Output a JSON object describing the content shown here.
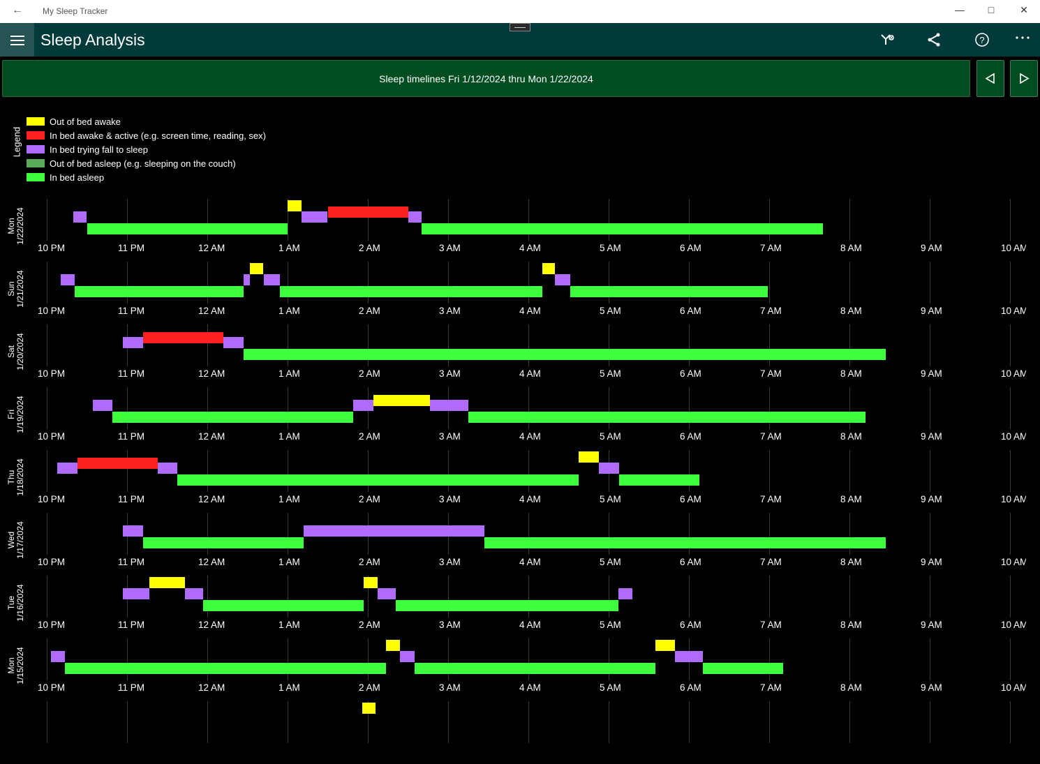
{
  "window": {
    "title": "My Sleep Tracker"
  },
  "appbar": {
    "title": "Sleep Analysis"
  },
  "header": {
    "title": "Sleep timelines Fri 1/12/2024 thru Mon 1/22/2024"
  },
  "legend": {
    "title": "Legend",
    "items": [
      {
        "label": "Out of bed awake",
        "color": "#ffff00"
      },
      {
        "label": "In bed awake & active (e.g. screen time, reading, sex)",
        "color": "#ff2020"
      },
      {
        "label": "In bed trying fall to sleep",
        "color": "#b06cff"
      },
      {
        "label": "Out of bed asleep (e.g. sleeping on the couch)",
        "color": "#5aa85a"
      },
      {
        "label": "In bed asleep",
        "color": "#3dff3d"
      }
    ]
  },
  "colors": {
    "out_of_bed_awake": "#ffff00",
    "in_bed_active": "#ff2020",
    "trying": "#b06cff",
    "out_of_bed_asleep": "#5aa85a",
    "asleep": "#3dff3d"
  },
  "chart_data": {
    "type": "timeline",
    "x_ticks": [
      "10 PM",
      "11 PM",
      "12 AM",
      "1 AM",
      "2 AM",
      "3 AM",
      "4 AM",
      "5 AM",
      "6 AM",
      "7 AM",
      "8 AM",
      "9 AM",
      "10 AM"
    ],
    "x_unit": "hours after 10 PM",
    "days": [
      {
        "day": "Mon",
        "date": "1/22/2024",
        "segments": [
          {
            "state": "trying",
            "start": 0.33,
            "end": 0.5,
            "level": 1
          },
          {
            "state": "asleep",
            "start": 0.5,
            "end": 3.0,
            "level": 2
          },
          {
            "state": "out_of_bed_awake",
            "start": 3.0,
            "end": 3.17,
            "level": 0
          },
          {
            "state": "trying",
            "start": 3.17,
            "end": 3.5,
            "level": 1
          },
          {
            "state": "in_bed_active",
            "start": 3.5,
            "end": 4.5,
            "level": 0.5
          },
          {
            "state": "trying",
            "start": 4.5,
            "end": 4.67,
            "level": 1
          },
          {
            "state": "asleep",
            "start": 4.67,
            "end": 9.67,
            "level": 2
          }
        ]
      },
      {
        "day": "Sun",
        "date": "1/21/2024",
        "segments": [
          {
            "state": "trying",
            "start": 0.17,
            "end": 0.35,
            "level": 1
          },
          {
            "state": "asleep",
            "start": 0.35,
            "end": 2.45,
            "level": 2
          },
          {
            "state": "trying",
            "start": 2.45,
            "end": 2.53,
            "level": 1
          },
          {
            "state": "out_of_bed_awake",
            "start": 2.53,
            "end": 2.7,
            "level": 0
          },
          {
            "state": "trying",
            "start": 2.7,
            "end": 2.9,
            "level": 1
          },
          {
            "state": "asleep",
            "start": 2.9,
            "end": 6.17,
            "level": 2
          },
          {
            "state": "out_of_bed_awake",
            "start": 6.17,
            "end": 6.33,
            "level": 0
          },
          {
            "state": "trying",
            "start": 6.33,
            "end": 6.52,
            "level": 1
          },
          {
            "state": "asleep",
            "start": 6.52,
            "end": 8.98,
            "level": 2
          }
        ]
      },
      {
        "day": "Sat",
        "date": "1/20/2024",
        "segments": [
          {
            "state": "trying",
            "start": 0.95,
            "end": 1.2,
            "level": 1
          },
          {
            "state": "in_bed_active",
            "start": 1.2,
            "end": 2.2,
            "level": 0.5
          },
          {
            "state": "trying",
            "start": 2.2,
            "end": 2.45,
            "level": 1
          },
          {
            "state": "asleep",
            "start": 2.45,
            "end": 10.45,
            "level": 2
          }
        ]
      },
      {
        "day": "Fri",
        "date": "1/19/2024",
        "segments": [
          {
            "state": "trying",
            "start": 0.57,
            "end": 0.82,
            "level": 1
          },
          {
            "state": "asleep",
            "start": 0.82,
            "end": 3.82,
            "level": 2
          },
          {
            "state": "trying",
            "start": 3.82,
            "end": 4.07,
            "level": 1
          },
          {
            "state": "out_of_bed_awake",
            "start": 4.07,
            "end": 4.77,
            "level": 0.5
          },
          {
            "state": "trying",
            "start": 4.77,
            "end": 5.25,
            "level": 1
          },
          {
            "state": "asleep",
            "start": 5.25,
            "end": 10.2,
            "level": 2
          }
        ]
      },
      {
        "day": "Thu",
        "date": "1/18/2024",
        "segments": [
          {
            "state": "trying",
            "start": 0.13,
            "end": 0.38,
            "level": 1
          },
          {
            "state": "in_bed_active",
            "start": 0.38,
            "end": 1.38,
            "level": 0.5
          },
          {
            "state": "trying",
            "start": 1.38,
            "end": 1.63,
            "level": 1
          },
          {
            "state": "asleep",
            "start": 1.63,
            "end": 6.63,
            "level": 2
          },
          {
            "state": "out_of_bed_awake",
            "start": 6.63,
            "end": 6.88,
            "level": 0
          },
          {
            "state": "trying",
            "start": 6.88,
            "end": 7.13,
            "level": 1
          },
          {
            "state": "asleep",
            "start": 7.13,
            "end": 8.13,
            "level": 2
          }
        ]
      },
      {
        "day": "Wed",
        "date": "1/17/2024",
        "segments": [
          {
            "state": "trying",
            "start": 0.95,
            "end": 1.2,
            "level": 1
          },
          {
            "state": "asleep",
            "start": 1.2,
            "end": 3.2,
            "level": 2
          },
          {
            "state": "trying",
            "start": 3.2,
            "end": 5.45,
            "level": 1
          },
          {
            "state": "asleep",
            "start": 5.45,
            "end": 10.45,
            "level": 2
          }
        ]
      },
      {
        "day": "Tue",
        "date": "1/16/2024",
        "segments": [
          {
            "state": "trying",
            "start": 0.95,
            "end": 1.28,
            "level": 1
          },
          {
            "state": "out_of_bed_awake",
            "start": 1.28,
            "end": 1.72,
            "level": 0
          },
          {
            "state": "trying",
            "start": 1.72,
            "end": 1.95,
            "level": 1
          },
          {
            "state": "asleep",
            "start": 1.95,
            "end": 3.95,
            "level": 2
          },
          {
            "state": "out_of_bed_awake",
            "start": 3.95,
            "end": 4.12,
            "level": 0
          },
          {
            "state": "trying",
            "start": 4.12,
            "end": 4.35,
            "level": 1
          },
          {
            "state": "asleep",
            "start": 4.35,
            "end": 7.12,
            "level": 2
          },
          {
            "state": "trying",
            "start": 7.12,
            "end": 7.3,
            "level": 1
          }
        ]
      },
      {
        "day": "Mon",
        "date": "1/15/2024",
        "segments": [
          {
            "state": "trying",
            "start": 0.05,
            "end": 0.23,
            "level": 1
          },
          {
            "state": "asleep",
            "start": 0.23,
            "end": 4.23,
            "level": 2
          },
          {
            "state": "out_of_bed_awake",
            "start": 4.23,
            "end": 4.4,
            "level": 0
          },
          {
            "state": "trying",
            "start": 4.4,
            "end": 4.58,
            "level": 1
          },
          {
            "state": "asleep",
            "start": 4.58,
            "end": 7.58,
            "level": 2
          },
          {
            "state": "out_of_bed_awake",
            "start": 7.58,
            "end": 7.83,
            "level": 0
          },
          {
            "state": "trying",
            "start": 7.83,
            "end": 8.17,
            "level": 1
          },
          {
            "state": "asleep",
            "start": 8.17,
            "end": 9.17,
            "level": 2
          }
        ]
      },
      {
        "day": "",
        "date": "",
        "segments": [
          {
            "state": "out_of_bed_awake",
            "start": 3.93,
            "end": 4.1,
            "level": 0
          }
        ]
      }
    ]
  },
  "icons": [
    "back-arrow-icon",
    "minimize-icon",
    "maximize-icon",
    "close-icon",
    "hamburger-icon",
    "settings-sparkle-icon",
    "share-icon",
    "help-icon",
    "more-icon",
    "previous-icon",
    "next-icon"
  ]
}
